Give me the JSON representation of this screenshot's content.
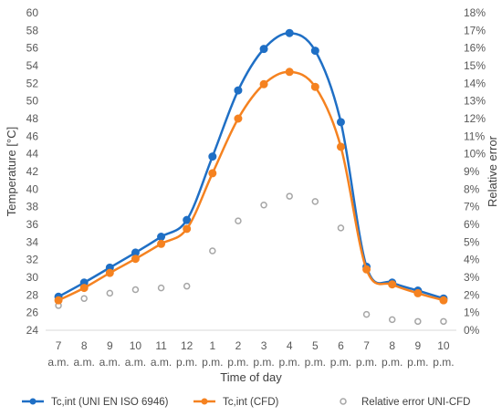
{
  "chart_data": {
    "type": "line",
    "categories": [
      [
        "7",
        "a.m."
      ],
      [
        "8",
        "a.m."
      ],
      [
        "9",
        "a.m."
      ],
      [
        "10",
        "a.m."
      ],
      [
        "11",
        "a.m."
      ],
      [
        "12",
        "p.m."
      ],
      [
        "1",
        "p.m."
      ],
      [
        "2",
        "p.m."
      ],
      [
        "3",
        "p.m."
      ],
      [
        "4",
        "p.m."
      ],
      [
        "5",
        "p.m."
      ],
      [
        "6",
        "p.m."
      ],
      [
        "7",
        "p.m."
      ],
      [
        "8",
        "p.m."
      ],
      [
        "9",
        "p.m."
      ],
      [
        "10",
        "p.m."
      ]
    ],
    "xlabel": "Time of day",
    "ylabel": "Temperature [°C]",
    "y2label": "Relative error",
    "ylim": [
      24,
      60
    ],
    "ystep": 2,
    "y2lim": [
      0,
      18
    ],
    "y2step": 1,
    "y2format": "percent",
    "grid": false,
    "legend": "bottom",
    "series": [
      {
        "name": "Tc,int (UNI EN ISO 6946)",
        "axis": "left",
        "style": "smooth-line-markers",
        "color": "#1f6fc5",
        "values": [
          27.8,
          29.4,
          31.1,
          32.8,
          34.6,
          36.5,
          43.7,
          51.2,
          55.9,
          57.7,
          55.7,
          47.6,
          31.2,
          29.4,
          28.5,
          27.6
        ]
      },
      {
        "name": "Tc,int (CFD)",
        "axis": "left",
        "style": "smooth-line-markers",
        "color": "#f58220",
        "values": [
          27.4,
          28.8,
          30.5,
          32.1,
          33.8,
          35.5,
          41.8,
          48.0,
          51.9,
          53.3,
          51.6,
          44.8,
          30.9,
          29.2,
          28.2,
          27.4
        ]
      },
      {
        "name": "Relative error UNI-CFD",
        "axis": "right",
        "style": "open-markers",
        "color": "#a6a6a6",
        "values": [
          1.4,
          1.8,
          2.1,
          2.3,
          2.4,
          2.5,
          4.5,
          6.2,
          7.1,
          7.6,
          7.3,
          5.8,
          0.9,
          0.6,
          0.5,
          0.5
        ]
      }
    ]
  }
}
